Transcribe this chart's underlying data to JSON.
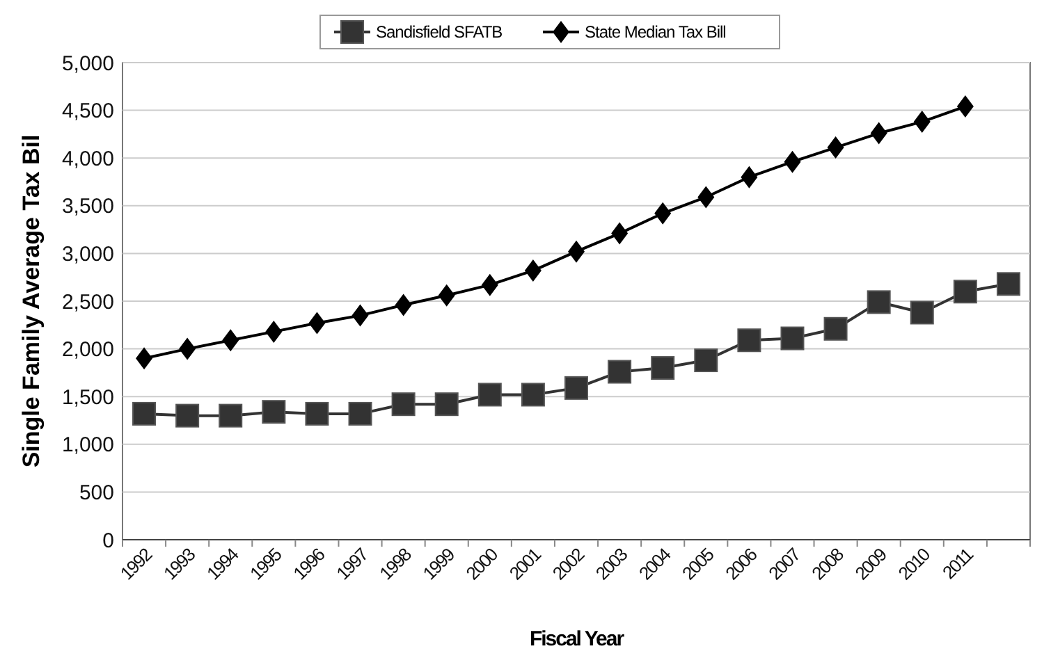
{
  "chart_data": {
    "type": "line",
    "xlabel": "Fiscal Year",
    "ylabel": "Single Family Average Tax Bil",
    "categories": [
      "1992",
      "1993",
      "1994",
      "1995",
      "1996",
      "1997",
      "1998",
      "1999",
      "2000",
      "2001",
      "2002",
      "2003",
      "2004",
      "2005",
      "2006",
      "2007",
      "2008",
      "2009",
      "2010",
      "2011",
      null
    ],
    "series": [
      {
        "name": "Sandisfield SFATB",
        "color": "#333333",
        "marker": "square",
        "values": [
          1320,
          1300,
          1300,
          1340,
          1320,
          1320,
          1420,
          1420,
          1520,
          1520,
          1590,
          1760,
          1800,
          1880,
          2090,
          2110,
          2210,
          2490,
          2380,
          2600,
          2680
        ]
      },
      {
        "name": "State Median Tax Bill",
        "color": "#000000",
        "marker": "diamond",
        "values": [
          1900,
          2000,
          2090,
          2180,
          2270,
          2350,
          2460,
          2560,
          2670,
          2820,
          3020,
          3210,
          3420,
          3590,
          3800,
          3960,
          4110,
          4260,
          4380,
          4540,
          null
        ]
      }
    ],
    "ylim": [
      0,
      5000
    ],
    "yticks": [
      {
        "value": 0,
        "label": "0"
      },
      {
        "value": 500,
        "label": "500"
      },
      {
        "value": 1000,
        "label": "1,000"
      },
      {
        "value": 1500,
        "label": "1,500"
      },
      {
        "value": 2000,
        "label": "2,000"
      },
      {
        "value": 2500,
        "label": "2,500"
      },
      {
        "value": 3000,
        "label": "3,000"
      },
      {
        "value": 3500,
        "label": "3,500"
      },
      {
        "value": 4000,
        "label": "4,000"
      },
      {
        "value": 4500,
        "label": "4,500"
      },
      {
        "value": 5000,
        "label": "5,000"
      }
    ],
    "grid": "y",
    "legend": "top",
    "line_style": "solid"
  }
}
